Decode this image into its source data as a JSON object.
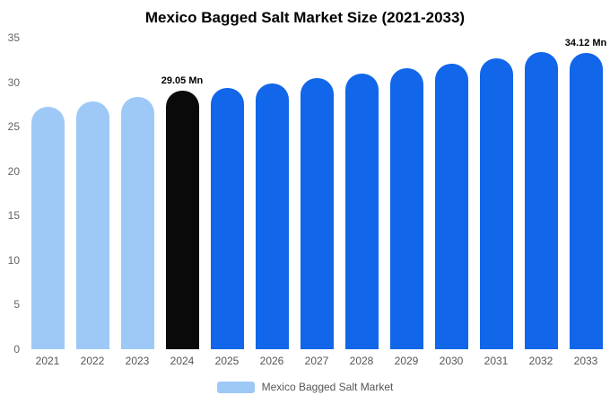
{
  "chart_data": {
    "type": "bar",
    "title": "Mexico Bagged Salt Market Size (2021-2033)",
    "categories": [
      "2021",
      "2022",
      "2023",
      "2024",
      "2025",
      "2026",
      "2027",
      "2028",
      "2029",
      "2030",
      "2031",
      "2032",
      "2033"
    ],
    "values": [
      27.2,
      27.8,
      28.3,
      29.05,
      29.4,
      29.9,
      30.45,
      31.0,
      31.6,
      32.1,
      32.7,
      33.35,
      34.12
    ],
    "bar_colors": [
      "#9ec9f7",
      "#9ec9f7",
      "#9ec9f7",
      "#0a0a0a",
      "#1166e9",
      "#1166e9",
      "#1166e9",
      "#1166e9",
      "#1166e9",
      "#1166e9",
      "#1166e9",
      "#1166e9",
      "#1166e9"
    ],
    "data_labels": {
      "2024": "29.05 Mn",
      "2033": "34.12 Mn"
    },
    "xlabel": "",
    "ylabel": "",
    "ylim": [
      0,
      35
    ],
    "yticks": [
      0,
      5,
      10,
      15,
      20,
      25,
      30,
      35
    ],
    "grid": false,
    "legend_position": "bottom"
  },
  "legend": {
    "label": "Mexico Bagged Salt Market",
    "swatch_color": "#9ec9f7"
  },
  "colors": {
    "historical": "#9ec9f7",
    "current_year": "#0a0a0a",
    "forecast": "#1166e9",
    "axis_text": "#5f6368"
  }
}
